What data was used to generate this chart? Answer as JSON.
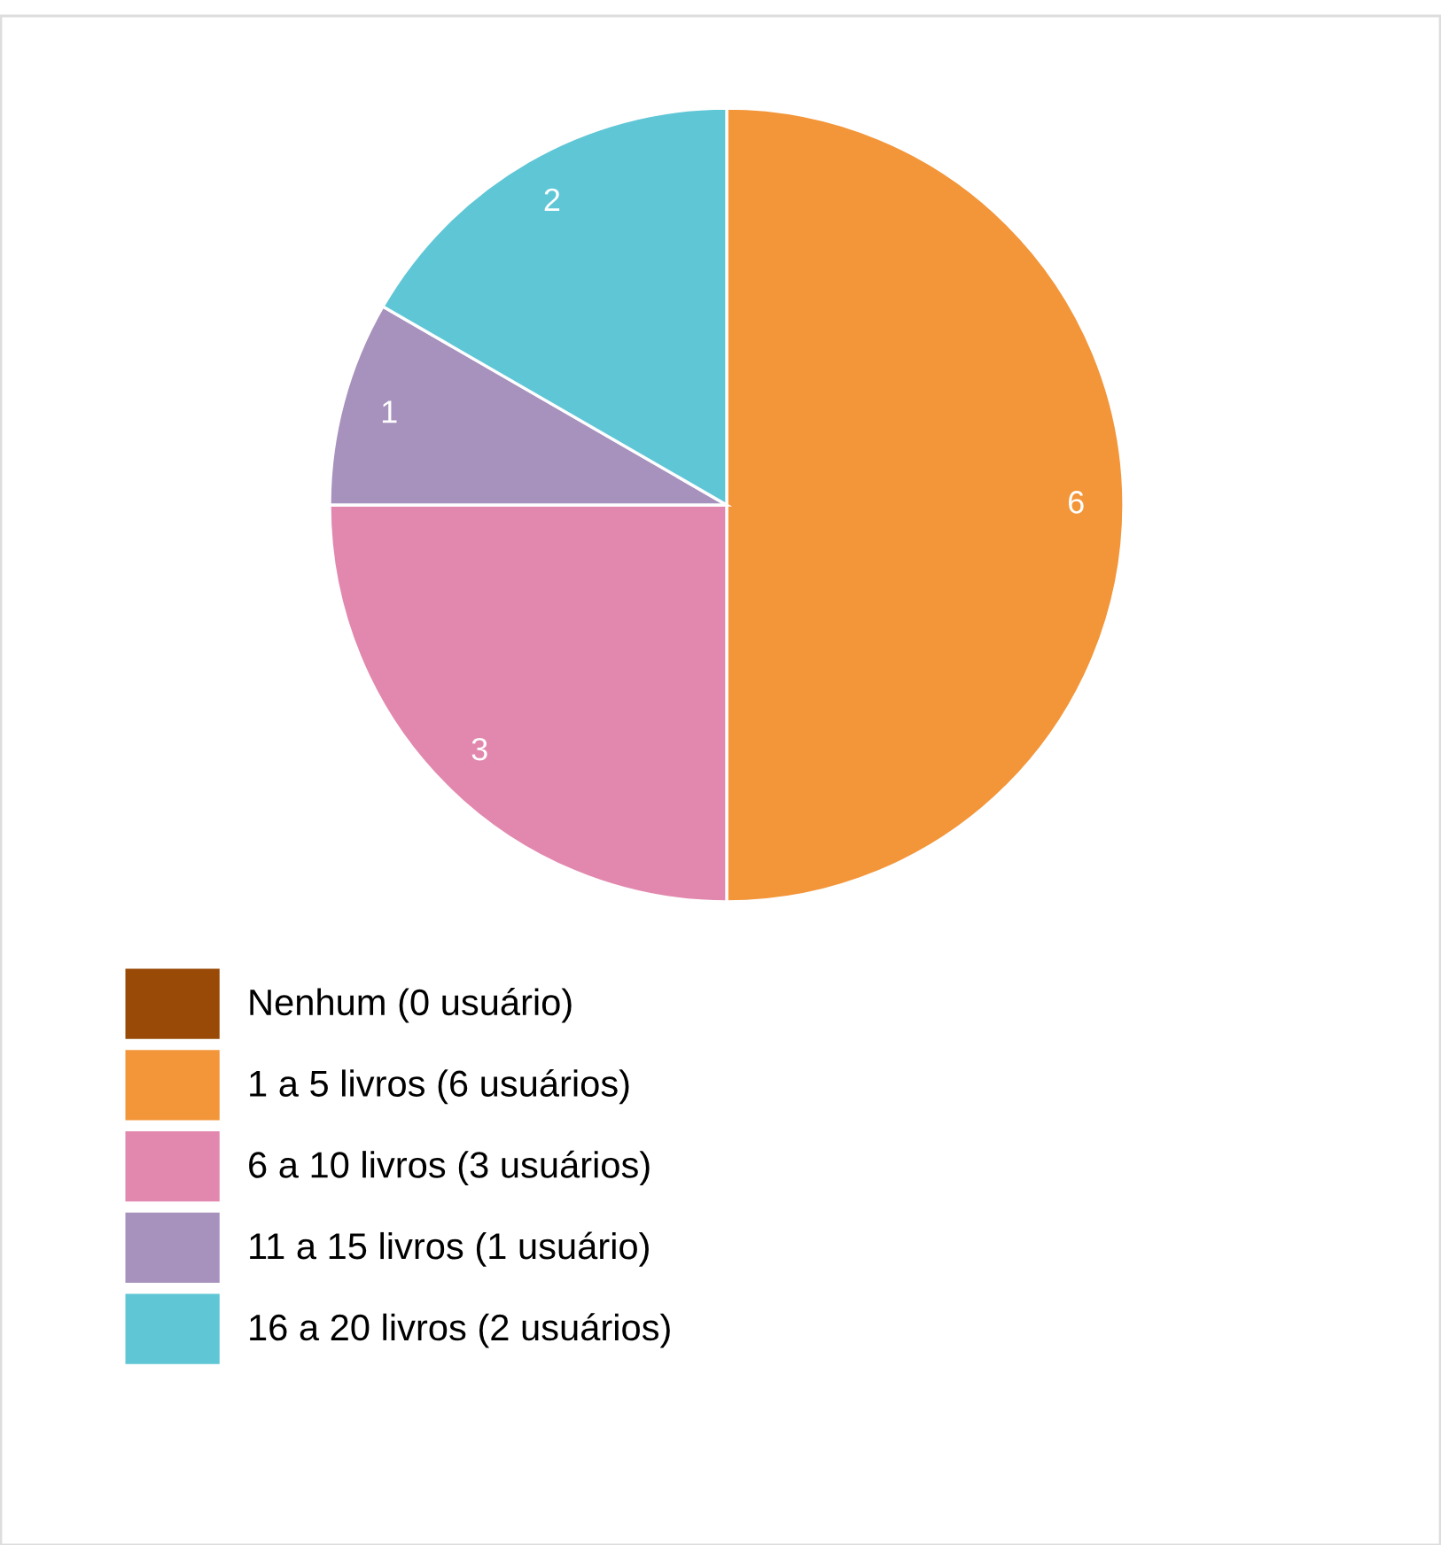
{
  "chart_data": {
    "type": "pie",
    "categories": [
      "Nenhum (0 usuário)",
      "1 a 5 livros (6 usuários)",
      "6 a 10 livros (3 usuários)",
      "11 a 15 livros (1 usuário)",
      "16 a 20 livros (2 usuários)"
    ],
    "values": [
      0,
      6,
      3,
      1,
      2
    ],
    "colors": [
      "#994a06",
      "#f39539",
      "#e288ae",
      "#a791bd",
      "#5fc6d6"
    ],
    "data_labels": true,
    "legend": "bottom left"
  }
}
